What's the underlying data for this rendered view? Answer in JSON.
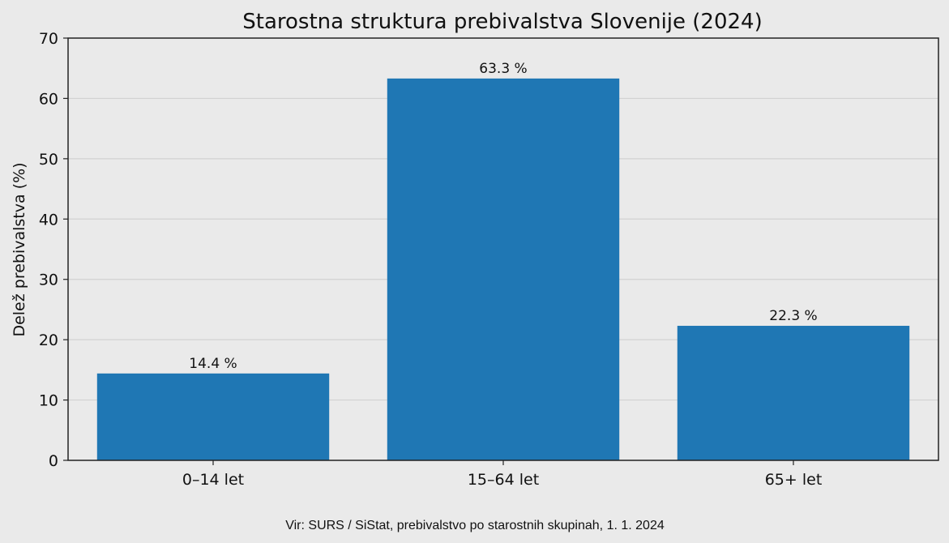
{
  "chart_data": {
    "type": "bar",
    "title": "Starostna struktura prebivalstva Slovenije (2024)",
    "xlabel": "",
    "ylabel": "Delež prebivalstva (%)",
    "categories": [
      "0–14 let",
      "15–64 let",
      "65+ let"
    ],
    "values": [
      14.4,
      63.3,
      22.3
    ],
    "value_labels": [
      "14.4 %",
      "63.3 %",
      "22.3 %"
    ],
    "ylim": [
      0,
      70
    ],
    "yticks": [
      0,
      10,
      20,
      30,
      40,
      50,
      60,
      70
    ],
    "grid": "horizontal",
    "bar_color": "#1f77b4",
    "background_color": "#eaeaea",
    "source": "Vir: SURS / SiStat, prebivalstvo po starostnih skupinah, 1. 1. 2024"
  }
}
